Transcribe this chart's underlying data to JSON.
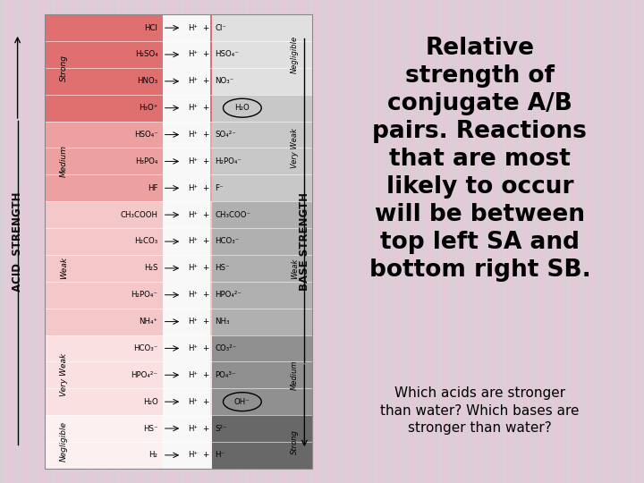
{
  "bg_top": "#d0d0d0",
  "bg_bottom": "#f0c8e0",
  "title_text": "Relative\nstrength of\nconjugate A/B\npairs. Reactions\nthat are most\nlikely to occur\nwill be between\ntop left SA and\nbottom right SB.",
  "subtitle_text": "Which acids are stronger\nthan water? Which bases are\nstronger than water?",
  "title_fontsize": 19,
  "subtitle_fontsize": 11,
  "rows": [
    {
      "acid": "HCl",
      "base": "Cl⁻",
      "acid_strength": "Strong",
      "base_strength": "Negligible"
    },
    {
      "acid": "H₂SO₄",
      "base": "HSO₄⁻",
      "acid_strength": "Strong",
      "base_strength": "Negligible"
    },
    {
      "acid": "HNO₃",
      "base": "NO₃⁻",
      "acid_strength": "Strong",
      "base_strength": "Negligible"
    },
    {
      "acid": "H₃O⁺",
      "base": "H₂O",
      "acid_strength": "Strong",
      "base_strength": "Very Weak",
      "base_circle": true
    },
    {
      "acid": "HSO₄⁻",
      "base": "SO₄²⁻",
      "acid_strength": "Medium",
      "base_strength": "Very Weak"
    },
    {
      "acid": "H₃PO₄",
      "base": "H₂PO₄⁻",
      "acid_strength": "Medium",
      "base_strength": "Very Weak"
    },
    {
      "acid": "HF",
      "base": "F⁻",
      "acid_strength": "Medium",
      "base_strength": "Very Weak"
    },
    {
      "acid": "CH₃COOH",
      "base": "CH₃COO⁻",
      "acid_strength": "Weak",
      "base_strength": "Weak"
    },
    {
      "acid": "H₂CO₃",
      "base": "HCO₃⁻",
      "acid_strength": "Weak",
      "base_strength": "Weak"
    },
    {
      "acid": "H₂S",
      "base": "HS⁻",
      "acid_strength": "Weak",
      "base_strength": "Weak"
    },
    {
      "acid": "H₂PO₄⁻",
      "base": "HPO₄²⁻",
      "acid_strength": "Weak",
      "base_strength": "Weak"
    },
    {
      "acid": "NH₄⁺",
      "base": "NH₃",
      "acid_strength": "Weak",
      "base_strength": "Weak"
    },
    {
      "acid": "HCO₃⁻",
      "base": "CO₃²⁻",
      "acid_strength": "Very Weak",
      "base_strength": "Medium"
    },
    {
      "acid": "HPO₄²⁻",
      "base": "PO₄³⁻",
      "acid_strength": "Very Weak",
      "base_strength": "Medium"
    },
    {
      "acid": "H₂O",
      "base": "OH⁻",
      "acid_strength": "Very Weak",
      "base_strength": "Medium",
      "acid_circle": true
    },
    {
      "acid": "HS⁻",
      "base": "S²⁻",
      "acid_strength": "Negligible",
      "base_strength": "Strong"
    },
    {
      "acid": "H₂",
      "base": "H⁻",
      "acid_strength": "Negligible",
      "base_strength": "Strong"
    }
  ],
  "acid_strength_colors": {
    "Strong": "#e07070",
    "Medium": "#eca0a0",
    "Weak": "#f4c8c8",
    "Very Weak": "#fae0e0",
    "Negligible": "#fdf0f0"
  },
  "base_strength_colors": {
    "Negligible": "#e0e0e0",
    "Very Weak": "#c8c8c8",
    "Weak": "#b0b0b0",
    "Medium": "#909090",
    "Strong": "#686868"
  },
  "acid_label_color": "#000000",
  "base_label_color": "#000000"
}
